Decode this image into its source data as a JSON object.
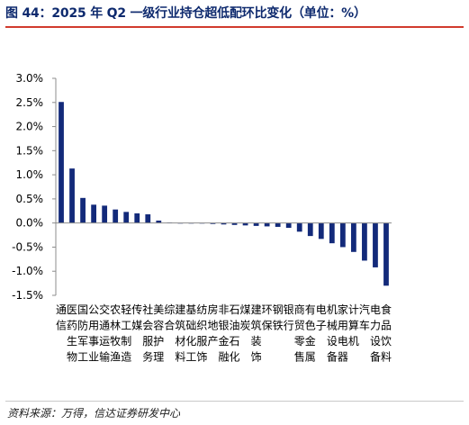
{
  "title": "图 44：2025 年 Q2 一级行业持仓超低配环比变化（单位：%）",
  "source": "资料来源：万得，信达证券研发中心",
  "chart_data": {
    "type": "bar",
    "title": "图 44：2025 年 Q2 一级行业持仓超低配环比变化（单位：%）",
    "ylabel": "",
    "xlabel": "",
    "ylim": [
      -1.5,
      3.0
    ],
    "yticks": [
      3.0,
      2.5,
      2.0,
      1.5,
      1.0,
      0.5,
      0.0,
      -0.5,
      -1.0,
      -1.5
    ],
    "ytick_labels": [
      "3.0%",
      "2.5%",
      "2.0%",
      "1.5%",
      "1.0%",
      "0.5%",
      "0.0%",
      "-0.5%",
      "-1.0%",
      "-1.5%"
    ],
    "grid": false,
    "bar_color": "#132a7a",
    "categories": [
      "通信",
      "医药生物",
      "国防军工",
      "公用事业",
      "交通运输",
      "农林牧渔",
      "轻工制造",
      "传媒",
      "社会服务",
      "美容护理",
      "综合",
      "建筑材料",
      "基础化工",
      "纺织服饰",
      "房地产",
      "非银金融",
      "石油石化",
      "煤炭",
      "建筑装饰",
      "环保",
      "钢铁",
      "银行",
      "商贸零售",
      "有色金属",
      "电子",
      "机械设备",
      "家用电器",
      "计算机",
      "汽车",
      "电力设备",
      "食品饮料"
    ],
    "values": [
      2.51,
      1.13,
      0.52,
      0.38,
      0.36,
      0.28,
      0.23,
      0.2,
      0.18,
      0.05,
      0.01,
      0.0,
      -0.01,
      -0.01,
      -0.02,
      -0.03,
      -0.04,
      -0.05,
      -0.06,
      -0.07,
      -0.08,
      -0.1,
      -0.18,
      -0.27,
      -0.33,
      -0.42,
      -0.5,
      -0.6,
      -0.78,
      -0.92,
      -1.3
    ]
  }
}
